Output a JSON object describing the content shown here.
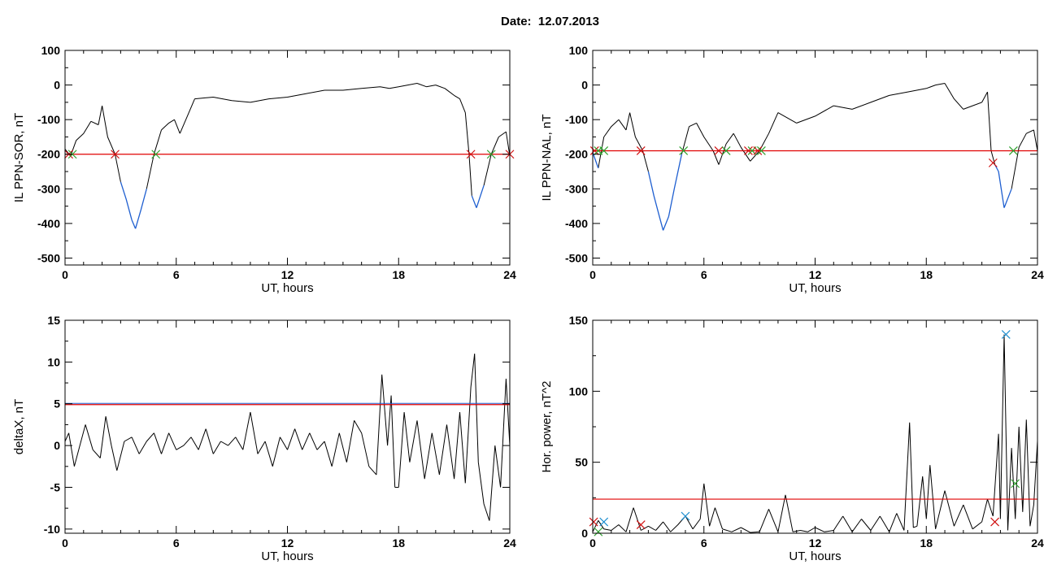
{
  "header": {
    "title": "Date:  12.07.2013"
  },
  "colors": {
    "trace": "#000000",
    "below_threshold": "#1f5fd0",
    "threshold": "#e00000",
    "crossing_down": "#d01010",
    "crossing_up": "#2ca02c",
    "peak_marker": "#1f8fd0"
  },
  "chart_data": [
    {
      "id": "sor",
      "type": "line",
      "xlabel": "UT, hours",
      "ylabel": "IL PPN-SOR, nT",
      "xlim": [
        0,
        24
      ],
      "ylim": [
        -520,
        100
      ],
      "xticks": [
        0,
        6,
        12,
        18,
        24
      ],
      "yticks": [
        100,
        0,
        -100,
        -200,
        -300,
        -400,
        -500
      ],
      "threshold": -200,
      "series": [
        {
          "x": [
            0,
            0.3,
            0.6,
            1.0,
            1.4,
            1.8,
            2.0,
            2.3,
            2.7,
            3.0,
            3.3,
            3.6,
            3.8,
            4.1,
            4.4,
            4.8,
            5.2,
            5.6,
            5.9,
            6.2,
            6.6,
            7.0,
            8.0,
            9.0,
            10.0,
            11.0,
            12.0,
            13.0,
            14.0,
            15.0,
            16.0,
            17.0,
            17.5,
            18.0,
            18.5,
            19.0,
            19.5,
            20.0,
            20.5,
            21.0,
            21.3,
            21.6,
            21.8,
            21.95,
            22.2,
            22.6,
            23.0,
            23.4,
            23.8,
            24.0
          ],
          "y": [
            -185,
            -205,
            -160,
            -140,
            -105,
            -115,
            -60,
            -150,
            -200,
            -280,
            -330,
            -390,
            -415,
            -360,
            -300,
            -200,
            -130,
            -110,
            -100,
            -140,
            -90,
            -40,
            -35,
            -45,
            -50,
            -40,
            -35,
            -25,
            -15,
            -15,
            -10,
            -5,
            -10,
            -5,
            0,
            5,
            -5,
            0,
            -10,
            -30,
            -40,
            -80,
            -200,
            -320,
            -355,
            -290,
            -200,
            -150,
            -135,
            -205
          ]
        }
      ],
      "crossings": [
        {
          "x": 0.2,
          "y": -200,
          "dir": "down"
        },
        {
          "x": 0.4,
          "y": -200,
          "dir": "up"
        },
        {
          "x": 2.7,
          "y": -200,
          "dir": "down"
        },
        {
          "x": 4.9,
          "y": -200,
          "dir": "up"
        },
        {
          "x": 21.9,
          "y": -200,
          "dir": "down"
        },
        {
          "x": 23.0,
          "y": -200,
          "dir": "up"
        },
        {
          "x": 24.0,
          "y": -200,
          "dir": "down"
        }
      ]
    },
    {
      "id": "nal",
      "type": "line",
      "xlabel": "UT, hours",
      "ylabel": "IL PPN-NAL, nT",
      "xlim": [
        0,
        24
      ],
      "ylim": [
        -520,
        100
      ],
      "xticks": [
        0,
        6,
        12,
        18,
        24
      ],
      "yticks": [
        100,
        0,
        -100,
        -200,
        -300,
        -400,
        -500
      ],
      "threshold": -190,
      "series": [
        {
          "x": [
            0,
            0.3,
            0.6,
            1.0,
            1.4,
            1.8,
            2.0,
            2.3,
            2.7,
            3.0,
            3.3,
            3.6,
            3.8,
            4.1,
            4.4,
            4.8,
            5.2,
            5.6,
            6.0,
            6.5,
            6.8,
            7.2,
            7.6,
            8.0,
            8.5,
            9.0,
            9.5,
            10.0,
            11.0,
            12.0,
            13.0,
            14.0,
            15.0,
            16.0,
            17.0,
            18.0,
            18.5,
            19.0,
            19.5,
            20.0,
            20.5,
            21.0,
            21.3,
            21.5,
            21.7,
            21.9,
            22.2,
            22.6,
            23.0,
            23.4,
            23.8,
            24.0
          ],
          "y": [
            -195,
            -240,
            -150,
            -120,
            -100,
            -130,
            -80,
            -150,
            -190,
            -250,
            -320,
            -380,
            -420,
            -380,
            -300,
            -200,
            -120,
            -110,
            -150,
            -190,
            -230,
            -170,
            -140,
            -180,
            -220,
            -190,
            -140,
            -80,
            -110,
            -90,
            -60,
            -70,
            -50,
            -30,
            -20,
            -10,
            0,
            5,
            -40,
            -70,
            -60,
            -50,
            -20,
            -190,
            -230,
            -250,
            -355,
            -300,
            -180,
            -140,
            -130,
            -190
          ]
        }
      ],
      "crossings": [
        {
          "x": 0.1,
          "y": -190,
          "dir": "down"
        },
        {
          "x": 0.3,
          "y": -190,
          "dir": "up"
        },
        {
          "x": 0.6,
          "y": -190,
          "dir": "up"
        },
        {
          "x": 2.6,
          "y": -190,
          "dir": "down"
        },
        {
          "x": 4.9,
          "y": -190,
          "dir": "up"
        },
        {
          "x": 6.8,
          "y": -190,
          "dir": "down"
        },
        {
          "x": 7.2,
          "y": -190,
          "dir": "up"
        },
        {
          "x": 8.4,
          "y": -190,
          "dir": "down"
        },
        {
          "x": 8.6,
          "y": -190,
          "dir": "up"
        },
        {
          "x": 8.9,
          "y": -190,
          "dir": "down"
        },
        {
          "x": 9.1,
          "y": -190,
          "dir": "up"
        },
        {
          "x": 21.6,
          "y": -225,
          "dir": "down"
        },
        {
          "x": 22.7,
          "y": -190,
          "dir": "up"
        }
      ]
    },
    {
      "id": "deltax",
      "type": "line",
      "xlabel": "UT, hours",
      "ylabel": "deltaX, nT",
      "xlim": [
        0,
        24
      ],
      "ylim": [
        -10.5,
        15
      ],
      "xticks": [
        0,
        6,
        12,
        18,
        24
      ],
      "yticks": [
        15,
        10,
        5,
        0,
        -5,
        -10
      ],
      "threshold": 4.9,
      "series": [
        {
          "x": [
            0,
            0.2,
            0.5,
            0.8,
            1.1,
            1.5,
            1.9,
            2.2,
            2.5,
            2.8,
            3.2,
            3.6,
            4.0,
            4.4,
            4.8,
            5.2,
            5.6,
            6.0,
            6.4,
            6.8,
            7.2,
            7.6,
            8.0,
            8.4,
            8.8,
            9.2,
            9.6,
            10.0,
            10.4,
            10.8,
            11.2,
            11.6,
            12.0,
            12.4,
            12.8,
            13.2,
            13.6,
            14.0,
            14.4,
            14.8,
            15.2,
            15.6,
            16.0,
            16.4,
            16.8,
            17.1,
            17.4,
            17.6,
            17.8,
            18.0,
            18.3,
            18.6,
            19.0,
            19.4,
            19.8,
            20.2,
            20.6,
            21.0,
            21.3,
            21.6,
            21.9,
            22.1,
            22.3,
            22.6,
            22.9,
            23.2,
            23.5,
            23.8,
            24.0
          ],
          "y": [
            0.5,
            1.5,
            -2.5,
            0,
            2.5,
            -0.5,
            -1.5,
            3.5,
            0,
            -3,
            0.5,
            1.0,
            -1.0,
            0.5,
            1.5,
            -1.0,
            1.5,
            -0.5,
            0,
            1.0,
            -0.5,
            2.0,
            -1.0,
            0.5,
            0,
            1.0,
            -0.5,
            4.0,
            -1.0,
            0.5,
            -2.5,
            1.0,
            -0.5,
            2.0,
            -0.5,
            1.5,
            -0.5,
            0.5,
            -2.5,
            1.5,
            -2.0,
            3.0,
            1.5,
            -2.5,
            -3.5,
            8.5,
            0,
            6,
            -5,
            -5,
            4,
            -2,
            3,
            -4,
            1.5,
            -3.5,
            2.5,
            -4,
            4,
            -4.5,
            7,
            11,
            -2,
            -7,
            -9,
            0,
            -5,
            8,
            0
          ]
        }
      ]
    },
    {
      "id": "power",
      "type": "line",
      "xlabel": "UT, hours",
      "ylabel": "Hor. power, nT^2",
      "xlim": [
        0,
        24
      ],
      "ylim": [
        0,
        150
      ],
      "xticks": [
        0,
        6,
        12,
        18,
        24
      ],
      "yticks": [
        150,
        100,
        50,
        0
      ],
      "threshold": 24,
      "series": [
        {
          "x": [
            0,
            0.3,
            0.6,
            1.0,
            1.4,
            1.8,
            2.2,
            2.6,
            3.0,
            3.4,
            3.8,
            4.2,
            4.6,
            5.0,
            5.4,
            5.8,
            6.0,
            6.3,
            6.6,
            7.0,
            7.5,
            8.0,
            8.5,
            9.0,
            9.5,
            10.0,
            10.4,
            10.8,
            11.2,
            11.6,
            12.0,
            12.5,
            13.0,
            13.5,
            14.0,
            14.5,
            15.0,
            15.5,
            16.0,
            16.4,
            16.8,
            17.1,
            17.3,
            17.5,
            17.8,
            18.0,
            18.2,
            18.5,
            19.0,
            19.5,
            20.0,
            20.5,
            21.0,
            21.3,
            21.6,
            21.9,
            22.0,
            22.2,
            22.4,
            22.6,
            22.8,
            23.0,
            23.2,
            23.4,
            23.6,
            23.8,
            24.0
          ],
          "y": [
            1,
            9,
            3,
            2,
            6,
            1,
            18,
            2,
            5,
            2,
            8,
            1,
            6,
            12,
            3,
            10,
            35,
            5,
            18,
            3,
            1,
            4,
            0.5,
            1,
            17,
            1,
            27,
            1,
            2,
            1,
            4,
            1,
            2,
            12,
            1,
            10,
            2,
            12,
            1,
            14,
            2,
            78,
            4,
            5,
            40,
            10,
            48,
            3,
            30,
            5,
            20,
            3,
            8,
            24,
            12,
            70,
            10,
            140,
            2,
            60,
            10,
            75,
            15,
            80,
            5,
            20,
            65
          ]
        }
      ],
      "markers": [
        {
          "x": 0.05,
          "y": 8,
          "color": "#d01010"
        },
        {
          "x": 0.3,
          "y": 1,
          "color": "#2ca02c"
        },
        {
          "x": 0.6,
          "y": 8,
          "color": "#1f8fd0"
        },
        {
          "x": 2.6,
          "y": 6,
          "color": "#d01010"
        },
        {
          "x": 5.0,
          "y": 12,
          "color": "#1f8fd0"
        },
        {
          "x": 21.7,
          "y": 8,
          "color": "#d01010"
        },
        {
          "x": 22.3,
          "y": 140,
          "color": "#1f8fd0"
        },
        {
          "x": 22.8,
          "y": 35,
          "color": "#2ca02c"
        }
      ]
    }
  ]
}
